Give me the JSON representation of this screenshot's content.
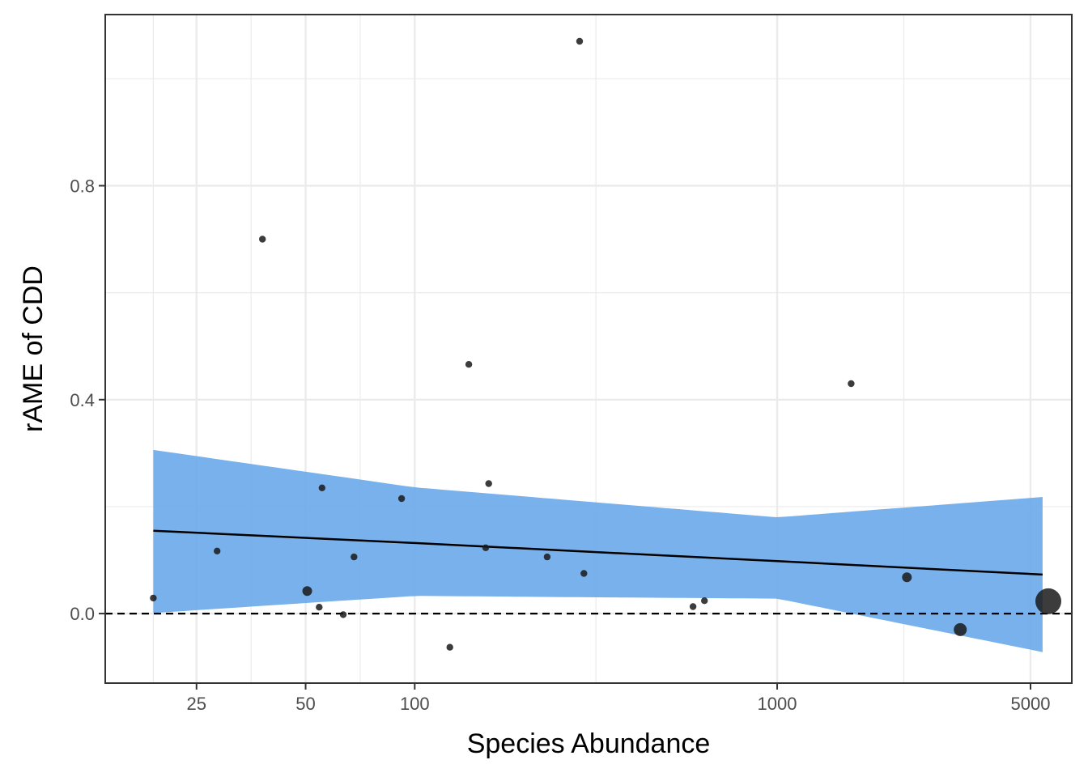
{
  "chart_data": {
    "type": "scatter",
    "title": "",
    "xlabel": "Species Abundance",
    "ylabel": "rAME of CDD",
    "x_scale": "log10",
    "xlim": [
      14,
      6500
    ],
    "ylim": [
      -0.13,
      1.12
    ],
    "x_ticks": [
      25,
      50,
      100,
      1000,
      5000
    ],
    "x_tick_labels": [
      "25",
      "50",
      "100",
      "1000",
      "5000"
    ],
    "y_ticks": [
      0.0,
      0.4,
      0.8
    ],
    "y_tick_labels": [
      "0.0",
      "0.4",
      "0.8"
    ],
    "grid": true,
    "reference_line": {
      "y": 0.0,
      "style": "dashed"
    },
    "points": [
      {
        "x": 19,
        "y": 0.029,
        "size": 1
      },
      {
        "x": 28.5,
        "y": 0.117,
        "size": 1
      },
      {
        "x": 38,
        "y": 0.7,
        "size": 1
      },
      {
        "x": 50.5,
        "y": 0.042,
        "size": 2
      },
      {
        "x": 54.5,
        "y": 0.012,
        "size": 1
      },
      {
        "x": 55.5,
        "y": 0.235,
        "size": 1
      },
      {
        "x": 63.5,
        "y": -0.002,
        "size": 1
      },
      {
        "x": 68,
        "y": 0.106,
        "size": 1
      },
      {
        "x": 92,
        "y": 0.215,
        "size": 1
      },
      {
        "x": 125,
        "y": -0.063,
        "size": 1
      },
      {
        "x": 141,
        "y": 0.466,
        "size": 1
      },
      {
        "x": 157,
        "y": 0.123,
        "size": 1
      },
      {
        "x": 160,
        "y": 0.243,
        "size": 1
      },
      {
        "x": 232,
        "y": 0.106,
        "size": 1
      },
      {
        "x": 285,
        "y": 1.07,
        "size": 1
      },
      {
        "x": 293,
        "y": 0.075,
        "size": 1
      },
      {
        "x": 586,
        "y": 0.013,
        "size": 1
      },
      {
        "x": 630,
        "y": 0.024,
        "size": 1
      },
      {
        "x": 1600,
        "y": 0.43,
        "size": 1
      },
      {
        "x": 2280,
        "y": 0.068,
        "size": 2
      },
      {
        "x": 3200,
        "y": -0.03,
        "size": 3
      },
      {
        "x": 5600,
        "y": 0.023,
        "size": 6
      }
    ],
    "trend": {
      "x": [
        19,
        100,
        1000,
        5400
      ],
      "fit": [
        0.155,
        0.132,
        0.098,
        0.073
      ],
      "lower": [
        0.001,
        0.033,
        0.028,
        -0.072
      ],
      "upper": [
        0.306,
        0.236,
        0.18,
        0.218
      ]
    },
    "colors": {
      "points": "#1a1a1a",
      "ribbon": "#6aa8ea",
      "line": "#000000",
      "grid": "#ebebeb",
      "panel_border": "#333333"
    }
  }
}
